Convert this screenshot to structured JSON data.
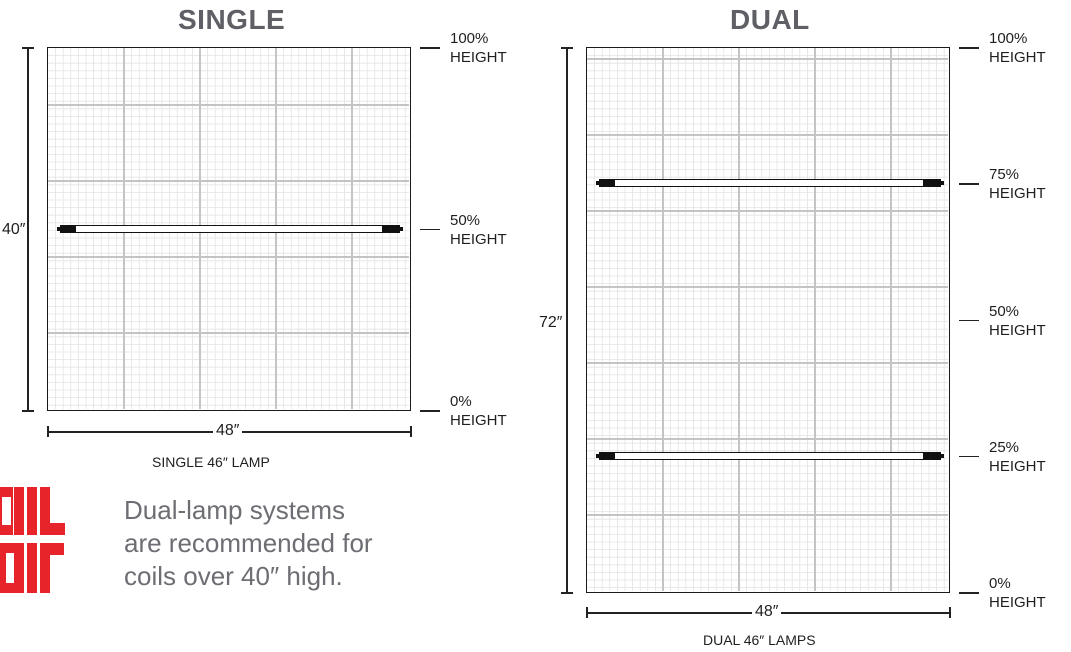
{
  "single": {
    "title": "SINGLE",
    "height_dim": "40″",
    "width_dim": "48″",
    "caption": "SINGLE 46″ LAMP",
    "levels": [
      {
        "pct": "100%",
        "word": "HEIGHT",
        "value": 1.0
      },
      {
        "pct": "50%",
        "word": "HEIGHT",
        "value": 0.5
      },
      {
        "pct": "0%",
        "word": "HEIGHT",
        "value": 0.0
      }
    ],
    "lamp_levels": [
      0.5
    ]
  },
  "dual": {
    "title": "DUAL",
    "height_dim": "72″",
    "width_dim": "48″",
    "caption": "DUAL 46″ LAMPS",
    "levels": [
      {
        "pct": "100%",
        "word": "HEIGHT",
        "value": 1.0
      },
      {
        "pct": "75%",
        "word": "HEIGHT",
        "value": 0.75
      },
      {
        "pct": "50%",
        "word": "HEIGHT",
        "value": 0.5
      },
      {
        "pct": "25%",
        "word": "HEIGHT",
        "value": 0.25
      },
      {
        "pct": "0%",
        "word": "HEIGHT",
        "value": 0.0
      }
    ],
    "lamp_levels": [
      0.75,
      0.25
    ]
  },
  "note": {
    "line1": "Dual-lamp systems",
    "line2": "are recommended for",
    "line3": "coils over 40″ high."
  },
  "logo": {
    "brand_color": "#e8242b",
    "name": "coil-air-logo"
  },
  "colors": {
    "grid_major": "#c4c4c4",
    "grid_minor": "#e3e3e3",
    "frame": "#1a1a1a"
  }
}
